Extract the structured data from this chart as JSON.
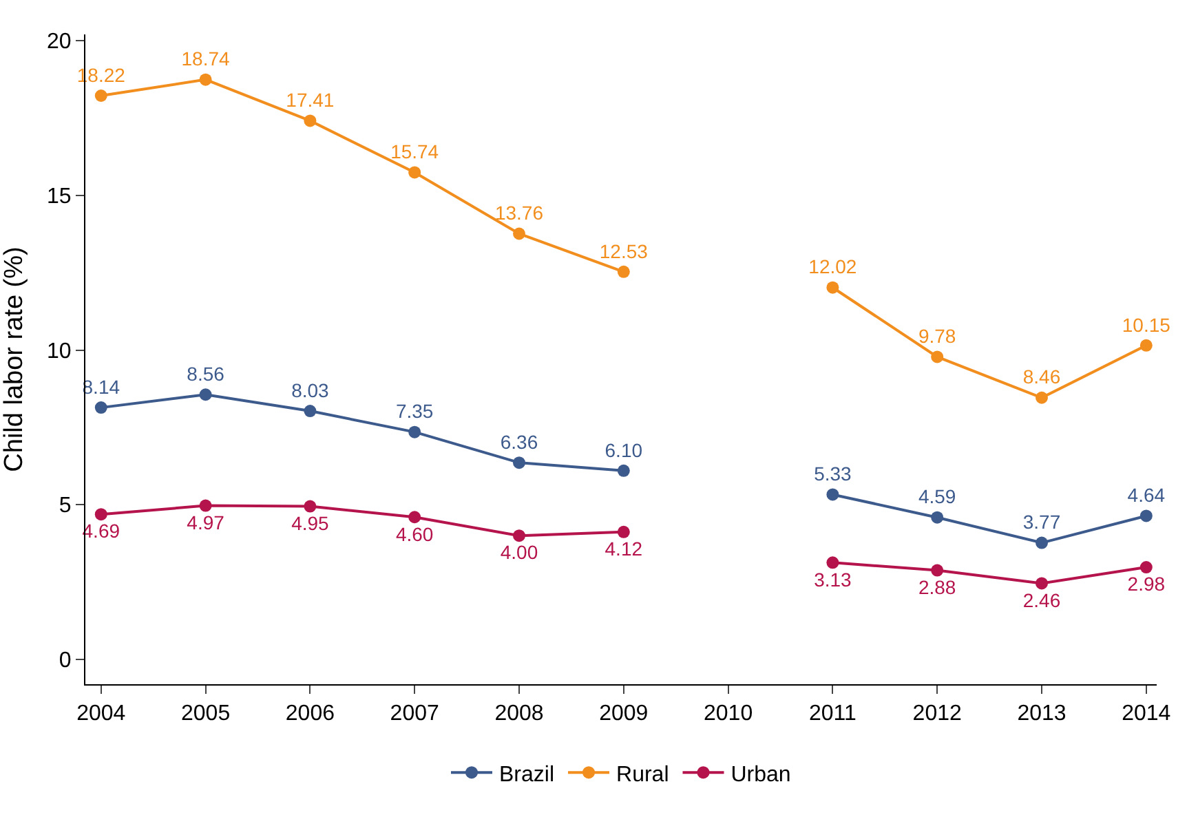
{
  "chart_data": {
    "type": "line",
    "ylabel": "Child labor rate (%)",
    "x": [
      2004,
      2005,
      2006,
      2007,
      2008,
      2009,
      2010,
      2011,
      2012,
      2013,
      2014
    ],
    "series": [
      {
        "name": "Brazil",
        "color": "#3d5a8c",
        "values": [
          8.14,
          8.56,
          8.03,
          7.35,
          6.36,
          6.1,
          null,
          5.33,
          4.59,
          3.77,
          4.64
        ],
        "value_labels": [
          "8.14",
          "8.56",
          "8.03",
          "7.35",
          "6.36",
          "6.10",
          null,
          "5.33",
          "4.59",
          "3.77",
          "4.64"
        ]
      },
      {
        "name": "Rural",
        "color": "#f28e1e",
        "values": [
          18.22,
          18.74,
          17.41,
          15.74,
          13.76,
          12.53,
          null,
          12.02,
          9.78,
          8.46,
          10.15
        ],
        "value_labels": [
          "18.22",
          "18.74",
          "17.41",
          "15.74",
          "13.76",
          "12.53",
          null,
          "12.02",
          "9.78",
          "8.46",
          "10.15"
        ]
      },
      {
        "name": "Urban",
        "color": "#b5134b",
        "values": [
          4.69,
          4.97,
          4.95,
          4.6,
          4.0,
          4.12,
          null,
          3.13,
          2.88,
          2.46,
          2.98
        ],
        "value_labels": [
          "4.69",
          "4.97",
          "4.95",
          "4.60",
          "4.00",
          "4.12",
          null,
          "3.13",
          "2.88",
          "2.46",
          "2.98"
        ]
      }
    ],
    "xlim": [
      2003.85,
      2014.1
    ],
    "xticks": [
      2004,
      2005,
      2006,
      2007,
      2008,
      2009,
      2010,
      2011,
      2012,
      2013,
      2014
    ],
    "ylim": [
      -0.8,
      20.2
    ],
    "yticks": [
      0,
      5,
      10,
      15,
      20
    ],
    "grid": false,
    "legend": "bottom",
    "marker": "circle",
    "line_style": "solid"
  }
}
